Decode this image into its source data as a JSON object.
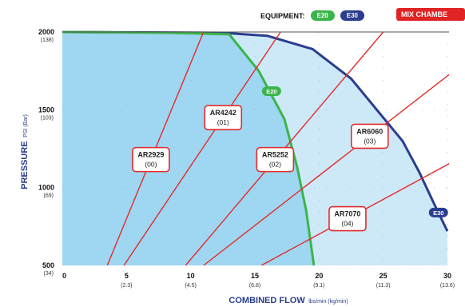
{
  "header": {
    "equipment_label": "EQUIPMENT:",
    "mix_chamber_button": "MIX CHAMBE"
  },
  "chart_data": {
    "type": "area",
    "xlabel": "COMBINED FLOW",
    "xlabel_units": "lbs/min (kg/min)",
    "ylabel": "PRESSURE",
    "ylabel_units": "PSI (Bar)",
    "xlim": [
      0,
      30
    ],
    "ylim": [
      500,
      2000
    ],
    "x_ticks": [
      {
        "value": 0,
        "label": "0",
        "sub": ""
      },
      {
        "value": 5,
        "label": "5",
        "sub": "(2.3)"
      },
      {
        "value": 10,
        "label": "10",
        "sub": "(4.5)"
      },
      {
        "value": 15,
        "label": "15",
        "sub": "(6.8)"
      },
      {
        "value": 20,
        "label": "20",
        "sub": "(9.1)"
      },
      {
        "value": 25,
        "label": "25",
        "sub": "(11.3)"
      },
      {
        "value": 30,
        "label": "30",
        "sub": "(13.6)"
      }
    ],
    "y_ticks": [
      {
        "value": 500,
        "label": "500",
        "sub": "(34)"
      },
      {
        "value": 1000,
        "label": "1000",
        "sub": "(69)"
      },
      {
        "value": 1500,
        "label": "1500",
        "sub": "(103)"
      },
      {
        "value": 2000,
        "label": "2000",
        "sub": "(138)"
      }
    ],
    "series": [
      {
        "name": "E20",
        "color": "#3ab54a",
        "fill": "#9fd6f1",
        "points": [
          [
            0,
            2000
          ],
          [
            8,
            1995
          ],
          [
            13,
            1985
          ],
          [
            15.3,
            1750
          ],
          [
            17.3,
            1440
          ],
          [
            18.3,
            1130
          ],
          [
            19.0,
            850
          ],
          [
            19.6,
            500
          ]
        ]
      },
      {
        "name": "E30",
        "color": "#2a3d8f",
        "fill": "#cde9f8",
        "points": [
          [
            0,
            2000
          ],
          [
            12.5,
            1995
          ],
          [
            16,
            1975
          ],
          [
            19.5,
            1890
          ],
          [
            22.5,
            1700
          ],
          [
            24.5,
            1500
          ],
          [
            26.5,
            1300
          ],
          [
            27.8,
            1100
          ],
          [
            29,
            890
          ],
          [
            30,
            720
          ]
        ]
      }
    ],
    "mix_chambers": [
      {
        "name": "AR2929",
        "code": "(00)",
        "x1": 3.5,
        "y1": 500,
        "x2": 11,
        "y2": 2000
      },
      {
        "name": "AR4242",
        "code": "(01)",
        "x1": 4.8,
        "y1": 500,
        "x2": 17,
        "y2": 2000
      },
      {
        "name": "AR5252",
        "code": "(02)",
        "x1": 9.6,
        "y1": 500,
        "x2": 25,
        "y2": 2000
      },
      {
        "name": "AR6060",
        "code": "(03)",
        "x1": 11,
        "y1": 500,
        "x2": 30.5,
        "y2": 1750
      },
      {
        "name": "AR7070",
        "code": "(04)",
        "x1": 15.5,
        "y1": 500,
        "x2": 30.5,
        "y2": 1170
      }
    ]
  }
}
